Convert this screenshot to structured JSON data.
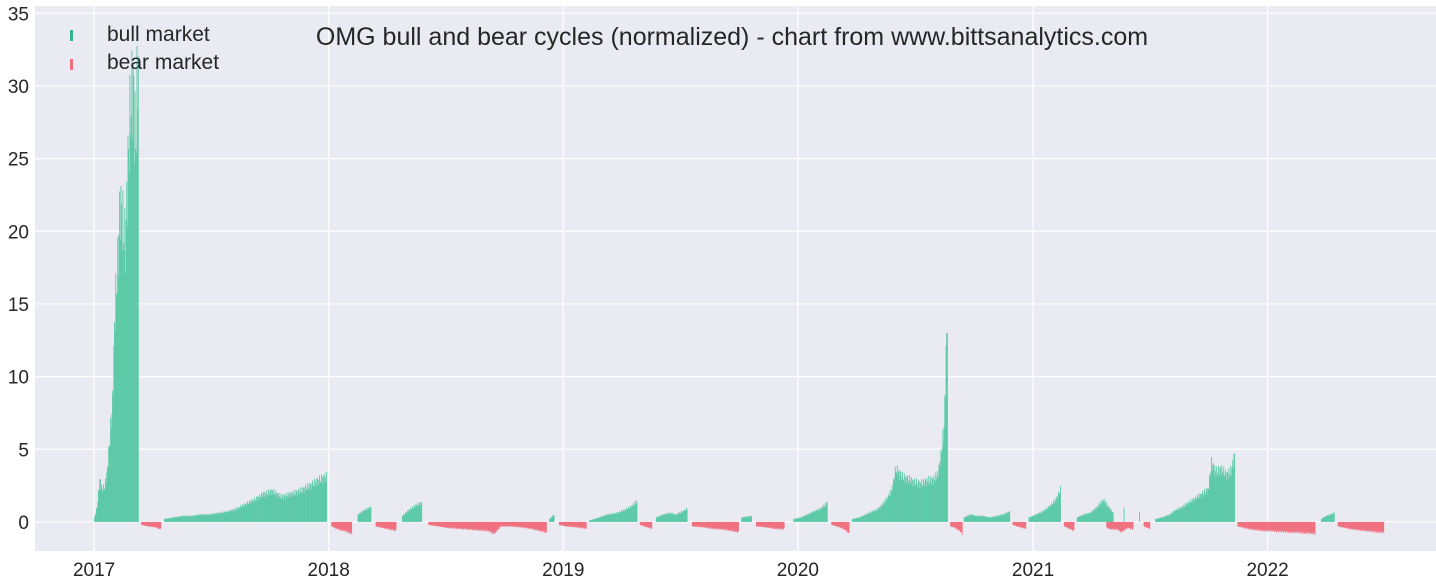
{
  "chart_data": {
    "type": "bar",
    "title": "OMG bull and bear cycles (normalized)  - chart from www.bittsanalytics.com",
    "xlabel": "",
    "ylabel": "",
    "ylim": [
      -2,
      35.5
    ],
    "xlim": [
      "2016-10-01",
      "2022-09-20"
    ],
    "y_ticks": [
      0,
      5,
      10,
      15,
      20,
      25,
      30,
      35
    ],
    "x_ticks": [
      {
        "date": "2017-01-01",
        "label": "2017"
      },
      {
        "date": "2018-01-01",
        "label": "2018"
      },
      {
        "date": "2019-01-01",
        "label": "2019"
      },
      {
        "date": "2020-01-01",
        "label": "2020"
      },
      {
        "date": "2021-01-01",
        "label": "2021"
      },
      {
        "date": "2022-01-01",
        "label": "2022"
      }
    ],
    "grid": true,
    "legend_position": "top-left",
    "colors": {
      "bull": "#5cc9a7",
      "bear": "#f0707f",
      "background": "#eaeaf2",
      "grid": "#ffffff"
    },
    "series": [
      {
        "name": "bull market",
        "key": "bull",
        "points": [
          [
            "2017-01-01",
            0.3
          ],
          [
            "2017-01-05",
            1.0
          ],
          [
            "2017-01-09",
            2.9
          ],
          [
            "2017-01-13",
            2.2
          ],
          [
            "2017-01-17",
            2.4
          ],
          [
            "2017-01-21",
            3.6
          ],
          [
            "2017-01-25",
            5.8
          ],
          [
            "2017-01-29",
            8.2
          ],
          [
            "2017-02-02",
            14.8
          ],
          [
            "2017-02-06",
            17.5
          ],
          [
            "2017-02-10",
            22.0
          ],
          [
            "2017-02-14",
            20.5
          ],
          [
            "2017-02-18",
            19.0
          ],
          [
            "2017-02-22",
            24.5
          ],
          [
            "2017-02-26",
            28.5
          ],
          [
            "2017-03-02",
            30.0
          ],
          [
            "2017-03-06",
            26.0
          ],
          [
            "2017-03-10",
            32.5
          ],
          [
            "2017-04-20",
            0.2
          ],
          [
            "2017-05-04",
            0.3
          ],
          [
            "2017-05-18",
            0.4
          ],
          [
            "2017-06-01",
            0.4
          ],
          [
            "2017-06-15",
            0.5
          ],
          [
            "2017-06-29",
            0.5
          ],
          [
            "2017-07-13",
            0.6
          ],
          [
            "2017-07-27",
            0.7
          ],
          [
            "2017-08-10",
            0.9
          ],
          [
            "2017-08-24",
            1.2
          ],
          [
            "2017-09-07",
            1.5
          ],
          [
            "2017-09-21",
            1.9
          ],
          [
            "2017-10-05",
            2.1
          ],
          [
            "2017-10-19",
            1.7
          ],
          [
            "2017-11-02",
            1.9
          ],
          [
            "2017-11-16",
            2.1
          ],
          [
            "2017-11-30",
            2.4
          ],
          [
            "2017-12-14",
            2.8
          ],
          [
            "2017-12-28",
            3.1
          ],
          [
            "2018-02-15",
            0.5
          ],
          [
            "2018-02-25",
            0.8
          ],
          [
            "2018-03-07",
            1.0
          ],
          [
            "2018-04-25",
            0.4
          ],
          [
            "2018-05-05",
            0.8
          ],
          [
            "2018-05-15",
            1.1
          ],
          [
            "2018-05-25",
            1.3
          ],
          [
            "2018-12-10",
            0.2
          ],
          [
            "2018-12-17",
            0.5
          ],
          [
            "2019-02-10",
            0.1
          ],
          [
            "2019-02-25",
            0.3
          ],
          [
            "2019-03-10",
            0.5
          ],
          [
            "2019-03-25",
            0.6
          ],
          [
            "2019-04-05",
            0.8
          ],
          [
            "2019-04-15",
            1.0
          ],
          [
            "2019-04-25",
            1.4
          ],
          [
            "2019-05-25",
            0.3
          ],
          [
            "2019-06-05",
            0.5
          ],
          [
            "2019-06-15",
            0.6
          ],
          [
            "2019-06-25",
            0.5
          ],
          [
            "2019-07-05",
            0.7
          ],
          [
            "2019-07-12",
            0.9
          ],
          [
            "2019-10-05",
            0.3
          ],
          [
            "2019-10-20",
            0.4
          ],
          [
            "2019-12-25",
            0.2
          ],
          [
            "2020-01-05",
            0.3
          ],
          [
            "2020-01-15",
            0.5
          ],
          [
            "2020-01-25",
            0.7
          ],
          [
            "2020-02-05",
            0.9
          ],
          [
            "2020-02-15",
            1.3
          ],
          [
            "2020-03-25",
            0.2
          ],
          [
            "2020-04-05",
            0.3
          ],
          [
            "2020-04-15",
            0.5
          ],
          [
            "2020-04-25",
            0.7
          ],
          [
            "2020-05-05",
            0.9
          ],
          [
            "2020-05-15",
            1.4
          ],
          [
            "2020-05-25",
            2.1
          ],
          [
            "2020-06-01",
            3.6
          ],
          [
            "2020-06-10",
            3.1
          ],
          [
            "2020-06-20",
            2.9
          ],
          [
            "2020-06-30",
            2.7
          ],
          [
            "2020-07-10",
            2.6
          ],
          [
            "2020-07-20",
            2.8
          ],
          [
            "2020-07-30",
            2.9
          ],
          [
            "2020-08-05",
            3.2
          ],
          [
            "2020-08-10",
            4.5
          ],
          [
            "2020-08-15",
            6.5
          ],
          [
            "2020-08-20",
            14.4
          ],
          [
            "2020-09-15",
            0.3
          ],
          [
            "2020-09-25",
            0.5
          ],
          [
            "2020-10-05",
            0.4
          ],
          [
            "2020-10-15",
            0.4
          ],
          [
            "2020-10-25",
            0.3
          ],
          [
            "2020-11-05",
            0.4
          ],
          [
            "2020-11-15",
            0.5
          ],
          [
            "2020-11-25",
            0.7
          ],
          [
            "2020-12-25",
            0.3
          ],
          [
            "2021-01-05",
            0.5
          ],
          [
            "2021-01-15",
            0.7
          ],
          [
            "2021-01-25",
            1.0
          ],
          [
            "2021-02-05",
            1.5
          ],
          [
            "2021-02-12",
            2.2
          ],
          [
            "2021-03-10",
            0.3
          ],
          [
            "2021-03-20",
            0.5
          ],
          [
            "2021-03-30",
            0.6
          ],
          [
            "2021-04-10",
            1.0
          ],
          [
            "2021-04-20",
            1.5
          ],
          [
            "2021-05-05",
            0.6
          ],
          [
            "2021-05-22",
            1.0
          ],
          [
            "2021-06-15",
            0.6
          ],
          [
            "2021-07-10",
            0.2
          ],
          [
            "2021-07-20",
            0.3
          ],
          [
            "2021-08-01",
            0.5
          ],
          [
            "2021-08-10",
            0.8
          ],
          [
            "2021-08-20",
            1.0
          ],
          [
            "2021-08-30",
            1.3
          ],
          [
            "2021-09-10",
            1.6
          ],
          [
            "2021-09-20",
            1.9
          ],
          [
            "2021-09-30",
            2.2
          ],
          [
            "2021-10-05",
            4.0
          ],
          [
            "2021-10-12",
            3.4
          ],
          [
            "2021-10-20",
            3.6
          ],
          [
            "2021-10-28",
            3.2
          ],
          [
            "2021-11-05",
            3.5
          ],
          [
            "2021-11-10",
            4.6
          ],
          [
            "2022-03-25",
            0.2
          ],
          [
            "2022-04-01",
            0.4
          ],
          [
            "2022-04-08",
            0.5
          ],
          [
            "2022-04-14",
            0.6
          ]
        ]
      },
      {
        "name": "bear market",
        "key": "bear",
        "points": [
          [
            "2017-03-15",
            -0.2
          ],
          [
            "2017-03-25",
            -0.3
          ],
          [
            "2017-04-05",
            -0.35
          ],
          [
            "2017-04-14",
            -0.5
          ],
          [
            "2018-01-05",
            -0.3
          ],
          [
            "2018-01-15",
            -0.5
          ],
          [
            "2018-01-25",
            -0.6
          ],
          [
            "2018-02-05",
            -0.8
          ],
          [
            "2018-03-15",
            -0.3
          ],
          [
            "2018-03-25",
            -0.4
          ],
          [
            "2018-04-05",
            -0.5
          ],
          [
            "2018-04-15",
            -0.6
          ],
          [
            "2018-06-05",
            -0.2
          ],
          [
            "2018-06-20",
            -0.3
          ],
          [
            "2018-07-05",
            -0.4
          ],
          [
            "2018-07-20",
            -0.45
          ],
          [
            "2018-08-05",
            -0.5
          ],
          [
            "2018-08-20",
            -0.55
          ],
          [
            "2018-09-05",
            -0.6
          ],
          [
            "2018-09-15",
            -0.8
          ],
          [
            "2018-09-25",
            -0.3
          ],
          [
            "2018-10-10",
            -0.3
          ],
          [
            "2018-10-25",
            -0.35
          ],
          [
            "2018-11-10",
            -0.45
          ],
          [
            "2018-11-25",
            -0.6
          ],
          [
            "2018-12-05",
            -0.7
          ],
          [
            "2018-12-25",
            -0.2
          ],
          [
            "2019-01-05",
            -0.3
          ],
          [
            "2019-01-20",
            -0.35
          ],
          [
            "2019-02-05",
            -0.45
          ],
          [
            "2019-04-30",
            -0.2
          ],
          [
            "2019-05-10",
            -0.35
          ],
          [
            "2019-05-18",
            -0.45
          ],
          [
            "2019-07-20",
            -0.3
          ],
          [
            "2019-08-05",
            -0.35
          ],
          [
            "2019-08-20",
            -0.45
          ],
          [
            "2019-09-05",
            -0.5
          ],
          [
            "2019-09-20",
            -0.6
          ],
          [
            "2019-09-30",
            -0.7
          ],
          [
            "2019-10-28",
            -0.3
          ],
          [
            "2019-11-10",
            -0.35
          ],
          [
            "2019-11-25",
            -0.45
          ],
          [
            "2019-12-10",
            -0.5
          ],
          [
            "2020-02-22",
            -0.2
          ],
          [
            "2020-03-05",
            -0.35
          ],
          [
            "2020-03-15",
            -0.55
          ],
          [
            "2020-03-20",
            -0.8
          ],
          [
            "2020-08-25",
            -0.3
          ],
          [
            "2020-09-01",
            -0.4
          ],
          [
            "2020-09-08",
            -0.6
          ],
          [
            "2020-09-12",
            -0.8
          ],
          [
            "2020-11-30",
            -0.2
          ],
          [
            "2020-12-10",
            -0.35
          ],
          [
            "2020-12-20",
            -0.45
          ],
          [
            "2021-02-18",
            -0.3
          ],
          [
            "2021-02-28",
            -0.5
          ],
          [
            "2021-03-05",
            -0.6
          ],
          [
            "2021-04-25",
            -0.4
          ],
          [
            "2021-05-01",
            -0.5
          ],
          [
            "2021-05-12",
            -0.5
          ],
          [
            "2021-05-17",
            -0.7
          ],
          [
            "2021-05-28",
            -0.4
          ],
          [
            "2021-06-05",
            -0.5
          ],
          [
            "2021-06-22",
            -0.3
          ],
          [
            "2021-07-01",
            -0.45
          ],
          [
            "2021-11-15",
            -0.3
          ],
          [
            "2021-11-25",
            -0.4
          ],
          [
            "2021-12-05",
            -0.5
          ],
          [
            "2021-12-15",
            -0.55
          ],
          [
            "2021-12-25",
            -0.6
          ],
          [
            "2022-01-05",
            -0.6
          ],
          [
            "2022-01-15",
            -0.65
          ],
          [
            "2022-01-25",
            -0.65
          ],
          [
            "2022-02-05",
            -0.7
          ],
          [
            "2022-02-15",
            -0.7
          ],
          [
            "2022-02-25",
            -0.75
          ],
          [
            "2022-03-05",
            -0.75
          ],
          [
            "2022-03-15",
            -0.8
          ],
          [
            "2022-04-20",
            -0.3
          ],
          [
            "2022-05-01",
            -0.4
          ],
          [
            "2022-05-12",
            -0.5
          ],
          [
            "2022-05-23",
            -0.55
          ],
          [
            "2022-06-03",
            -0.6
          ],
          [
            "2022-06-13",
            -0.65
          ],
          [
            "2022-06-23",
            -0.7
          ],
          [
            "2022-06-30",
            -0.7
          ]
        ]
      }
    ]
  }
}
